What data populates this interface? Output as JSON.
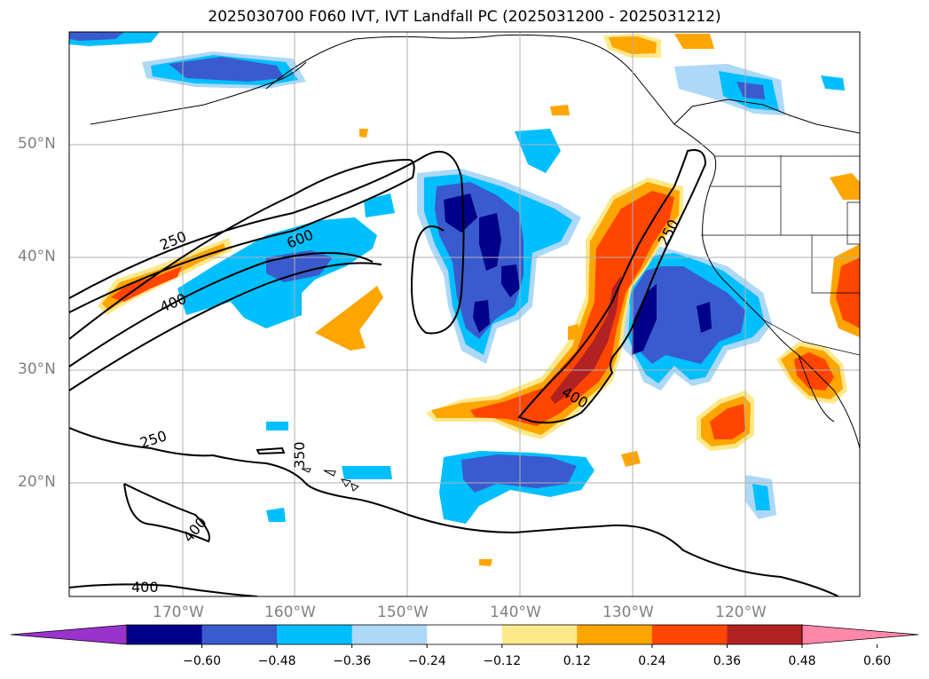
{
  "title": "2025030700 F060 IVT, IVT Landfall PC (2025031200 - 2025031212)",
  "lat_labels": [
    "50°N",
    "40°N",
    "30°N",
    "20°N"
  ],
  "lon_labels": [
    "170°W",
    "160°W",
    "150°W",
    "140°W",
    "130°W",
    "120°W"
  ],
  "contour_labels": [
    "250",
    "600",
    "400",
    "250",
    "400",
    "250",
    "350",
    "400",
    "400"
  ],
  "colorbar": {
    "ticks": [
      "−0.60",
      "−0.48",
      "−0.36",
      "−0.24",
      "−0.12",
      "0.12",
      "0.24",
      "0.36",
      "0.48",
      "0.60"
    ],
    "colors": [
      "#9933cc",
      "#00008b",
      "#3a5bcd",
      "#00bfff",
      "#add8f7",
      "#ffffff",
      "#fde88a",
      "#ffa500",
      "#ff4500",
      "#b22222",
      "#ff88aa"
    ]
  }
}
